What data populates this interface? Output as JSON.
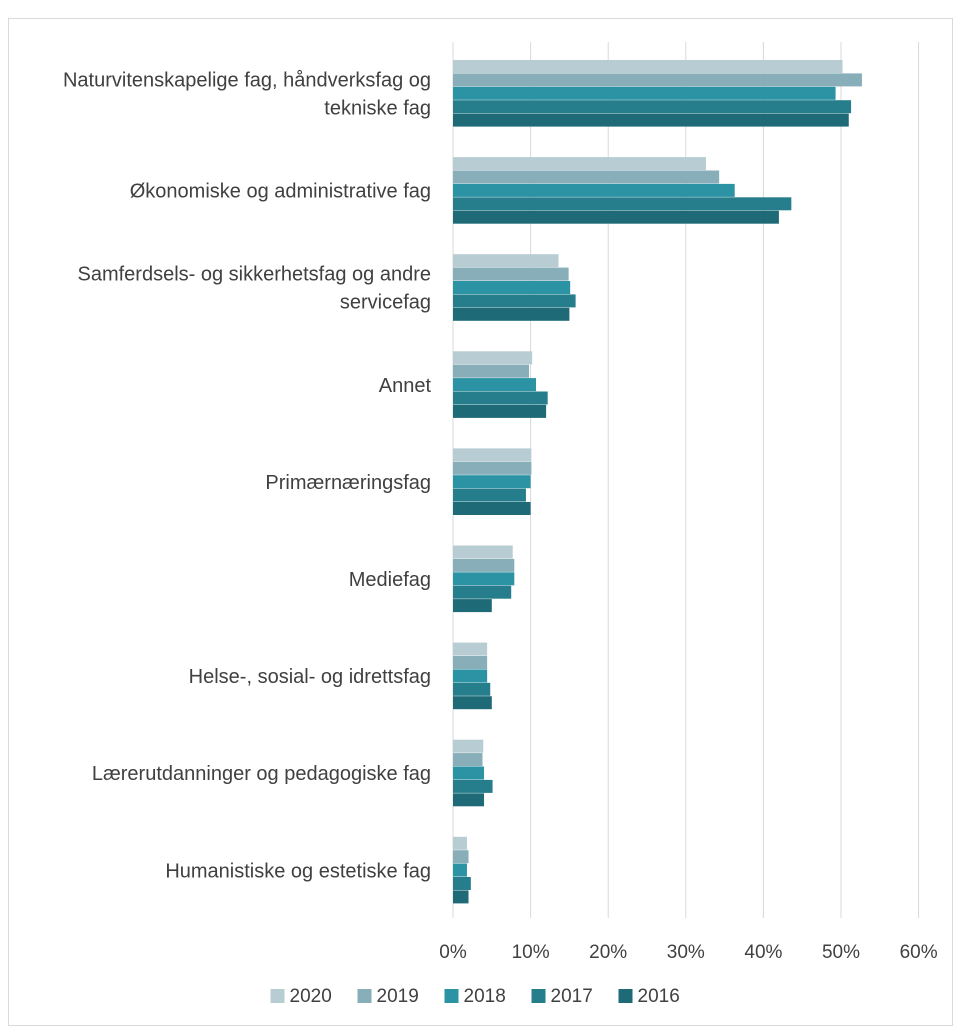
{
  "chart_data": {
    "type": "bar",
    "orientation": "horizontal",
    "categories": [
      [
        "Naturvitenskapelige fag, håndverksfag og",
        "tekniske fag"
      ],
      [
        "Økonomiske og administrative fag"
      ],
      [
        "Samferdsels- og sikkerhetsfag og andre",
        "servicefag"
      ],
      [
        "Annet"
      ],
      [
        "Primærnæringsfag"
      ],
      [
        "Mediefag"
      ],
      [
        "Helse-, sosial- og idrettsfag"
      ],
      [
        "Lærerutdanninger og pedagogiske fag"
      ],
      [
        "Humanistiske og estetiske fag"
      ]
    ],
    "series": [
      {
        "name": "2020",
        "color": "#b8cdd3",
        "values": [
          50.2,
          32.6,
          13.6,
          10.2,
          10.1,
          7.7,
          4.4,
          3.9,
          1.8
        ]
      },
      {
        "name": "2019",
        "color": "#87aeb9",
        "values": [
          52.7,
          34.3,
          14.9,
          9.8,
          10.1,
          7.9,
          4.4,
          3.8,
          2.0
        ]
      },
      {
        "name": "2018",
        "color": "#2b93a3",
        "values": [
          49.3,
          36.3,
          15.1,
          10.7,
          10.0,
          7.9,
          4.4,
          4.0,
          1.8
        ]
      },
      {
        "name": "2017",
        "color": "#267e8c",
        "values": [
          51.3,
          43.6,
          15.8,
          12.2,
          9.4,
          7.5,
          4.8,
          5.1,
          2.3
        ]
      },
      {
        "name": "2016",
        "color": "#1e6b77",
        "values": [
          51.0,
          42.0,
          15.0,
          12.0,
          10.0,
          5.0,
          5.0,
          4.0,
          2.0
        ]
      }
    ],
    "xlim": [
      0,
      60
    ],
    "xticks": [
      "0%",
      "10%",
      "20%",
      "30%",
      "40%",
      "50%",
      "60%"
    ],
    "grid": true,
    "legend": "bottom"
  }
}
